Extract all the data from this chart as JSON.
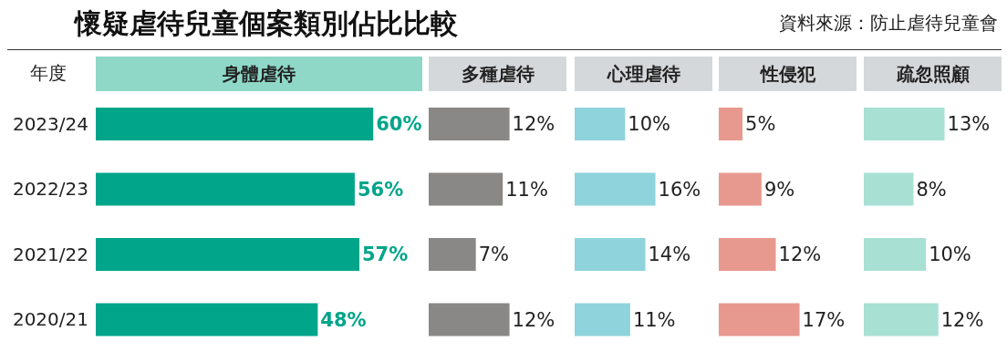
{
  "chart_data": [
    {
      "type": "bar",
      "orientation": "horizontal",
      "title": "身體虐待",
      "ylabel": "年度",
      "annotations": [
        "懷疑虐待兒童個案類別佔比比較",
        "資料來源：防止虐待兒童會"
      ],
      "categories": [
        "2023/24",
        "2022/23",
        "2021/22",
        "2020/21"
      ],
      "values": [
        60,
        56,
        57,
        48
      ],
      "value_labels": [
        "60%",
        "56%",
        "57%",
        "48%"
      ],
      "color": "#00a58a",
      "tick_labels": "y"
    },
    {
      "type": "bar",
      "orientation": "horizontal",
      "title": "多種虐待",
      "categories": [
        "2023/24",
        "2022/23",
        "2021/22",
        "2020/21"
      ],
      "values": [
        12,
        11,
        7,
        12
      ],
      "value_labels": [
        "12%",
        "11%",
        "7%",
        "12%"
      ],
      "color": "#8a8886",
      "tick_labels": false
    },
    {
      "type": "bar",
      "orientation": "horizontal",
      "title": "心理虐待",
      "categories": [
        "2023/24",
        "2022/23",
        "2021/22",
        "2020/21"
      ],
      "values": [
        10,
        16,
        14,
        11
      ],
      "value_labels": [
        "10%",
        "16%",
        "14%",
        "11%"
      ],
      "color": "#8fd3dc",
      "tick_labels": false
    },
    {
      "type": "bar",
      "orientation": "horizontal",
      "title": "性侵犯",
      "categories": [
        "2023/24",
        "2022/23",
        "2021/22",
        "2020/21"
      ],
      "values": [
        5,
        9,
        12,
        17
      ],
      "value_labels": [
        "5%",
        "9%",
        "12%",
        "17%"
      ],
      "color": "#e8998f",
      "tick_labels": false
    },
    {
      "type": "bar",
      "orientation": "horizontal",
      "title": "疏忽照顧",
      "categories": [
        "2023/24",
        "2022/23",
        "2021/22",
        "2020/21"
      ],
      "values": [
        13,
        8,
        10,
        12
      ],
      "value_labels": [
        "13%",
        "8%",
        "10%",
        "12%"
      ],
      "color": "#a8e0d4",
      "tick_labels": false
    }
  ]
}
